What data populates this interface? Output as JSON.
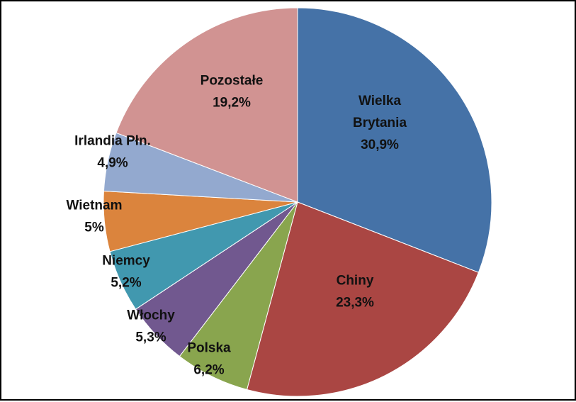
{
  "chart_data": {
    "type": "pie",
    "categories": [
      "Wielka Brytania",
      "Chiny",
      "Polska",
      "Włochy",
      "Niemcy",
      "Wietnam",
      "Irlandia Płn.",
      "Pozostałe"
    ],
    "values": [
      30.9,
      23.3,
      6.2,
      5.3,
      5.2,
      5.0,
      4.9,
      19.2
    ],
    "value_labels": [
      "30,9%",
      "23,3%",
      "6,2%",
      "5,3%",
      "5,2%",
      "5%",
      "4,9%",
      "19,2%"
    ],
    "label_lines": [
      [
        "Wielka",
        "Brytania"
      ],
      [
        "Chiny"
      ],
      [
        "Polska"
      ],
      [
        "Włochy"
      ],
      [
        "Niemcy"
      ],
      [
        "Wietnam"
      ],
      [
        "Irlandia Płn."
      ],
      [
        "Pozostałe"
      ]
    ],
    "colors": [
      "#4572A7",
      "#AA4643",
      "#89A54E",
      "#71588F",
      "#4198AF",
      "#DB843D",
      "#93A9CF",
      "#D19392"
    ],
    "start": "12 o'clock",
    "direction": "clockwise",
    "legend": "none"
  }
}
